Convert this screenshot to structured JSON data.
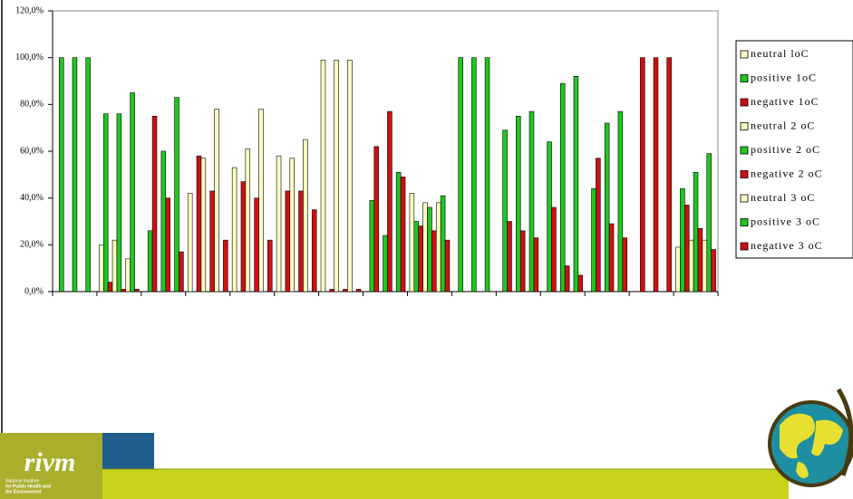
{
  "chart_data": {
    "type": "bar",
    "categories": [
      null,
      null,
      null,
      null,
      null,
      null,
      null,
      null,
      null,
      null,
      null,
      null,
      null,
      null,
      null
    ],
    "series": [
      {
        "name": "neutral loC",
        "color": "#ffffc0",
        "values": [
          0,
          20,
          0,
          42,
          53,
          58,
          99,
          0,
          42,
          0,
          0,
          0,
          0,
          0,
          19
        ]
      },
      {
        "name": "positive 1oC",
        "color": "#1ec81e",
        "values": [
          100,
          76,
          26,
          0,
          0,
          0,
          0,
          39,
          30,
          100,
          69,
          64,
          44,
          0,
          44
        ]
      },
      {
        "name": "negative 1oC",
        "color": "#d01010",
        "values": [
          0,
          4,
          75,
          58,
          47,
          43,
          1,
          62,
          28,
          0,
          30,
          36,
          57,
          100,
          37
        ]
      },
      {
        "name": "neutral 2 oC",
        "color": "#ffffc0",
        "values": [
          0,
          22,
          0,
          57,
          61,
          57,
          99,
          0,
          38,
          0,
          0,
          0,
          0,
          0,
          22
        ]
      },
      {
        "name": "positive 2 oC",
        "color": "#1ec81e",
        "values": [
          100,
          76,
          60,
          0,
          0,
          0,
          0,
          24,
          36,
          100,
          75,
          89,
          72,
          0,
          51
        ]
      },
      {
        "name": "negative 2 oC",
        "color": "#d01010",
        "values": [
          0,
          1,
          40,
          43,
          40,
          43,
          1,
          77,
          26,
          0,
          26,
          11,
          29,
          100,
          27
        ]
      },
      {
        "name": "neutral 3 oC",
        "color": "#ffffc0",
        "values": [
          0,
          14,
          0,
          78,
          78,
          65,
          99,
          0,
          38,
          0,
          0,
          0,
          0,
          0,
          22
        ]
      },
      {
        "name": "positive 3 oC",
        "color": "#1ec81e",
        "values": [
          100,
          85,
          83,
          0,
          0,
          0,
          0,
          51,
          41,
          100,
          77,
          92,
          77,
          0,
          59
        ]
      },
      {
        "name": "negative 3 oC",
        "color": "#d01010",
        "values": [
          0,
          1,
          17,
          22,
          22,
          35,
          1,
          49,
          22,
          0,
          23,
          7,
          23,
          100,
          18
        ]
      }
    ],
    "ylim": [
      0,
      120
    ],
    "yticks": [
      {
        "value": 0,
        "label": "0,0%"
      },
      {
        "value": 20,
        "label": "20,0%"
      },
      {
        "value": 40,
        "label": "40,0%"
      },
      {
        "value": 60,
        "label": "60,0%"
      },
      {
        "value": 80,
        "label": "80,0%"
      },
      {
        "value": 100,
        "label": "100,0%"
      },
      {
        "value": 120,
        "label": "120,0%"
      }
    ],
    "grid": false,
    "legend": "right"
  },
  "logo": {
    "name": "rivm",
    "tagline": [
      "National Institute",
      "for Public Health and",
      "the Environment"
    ]
  }
}
